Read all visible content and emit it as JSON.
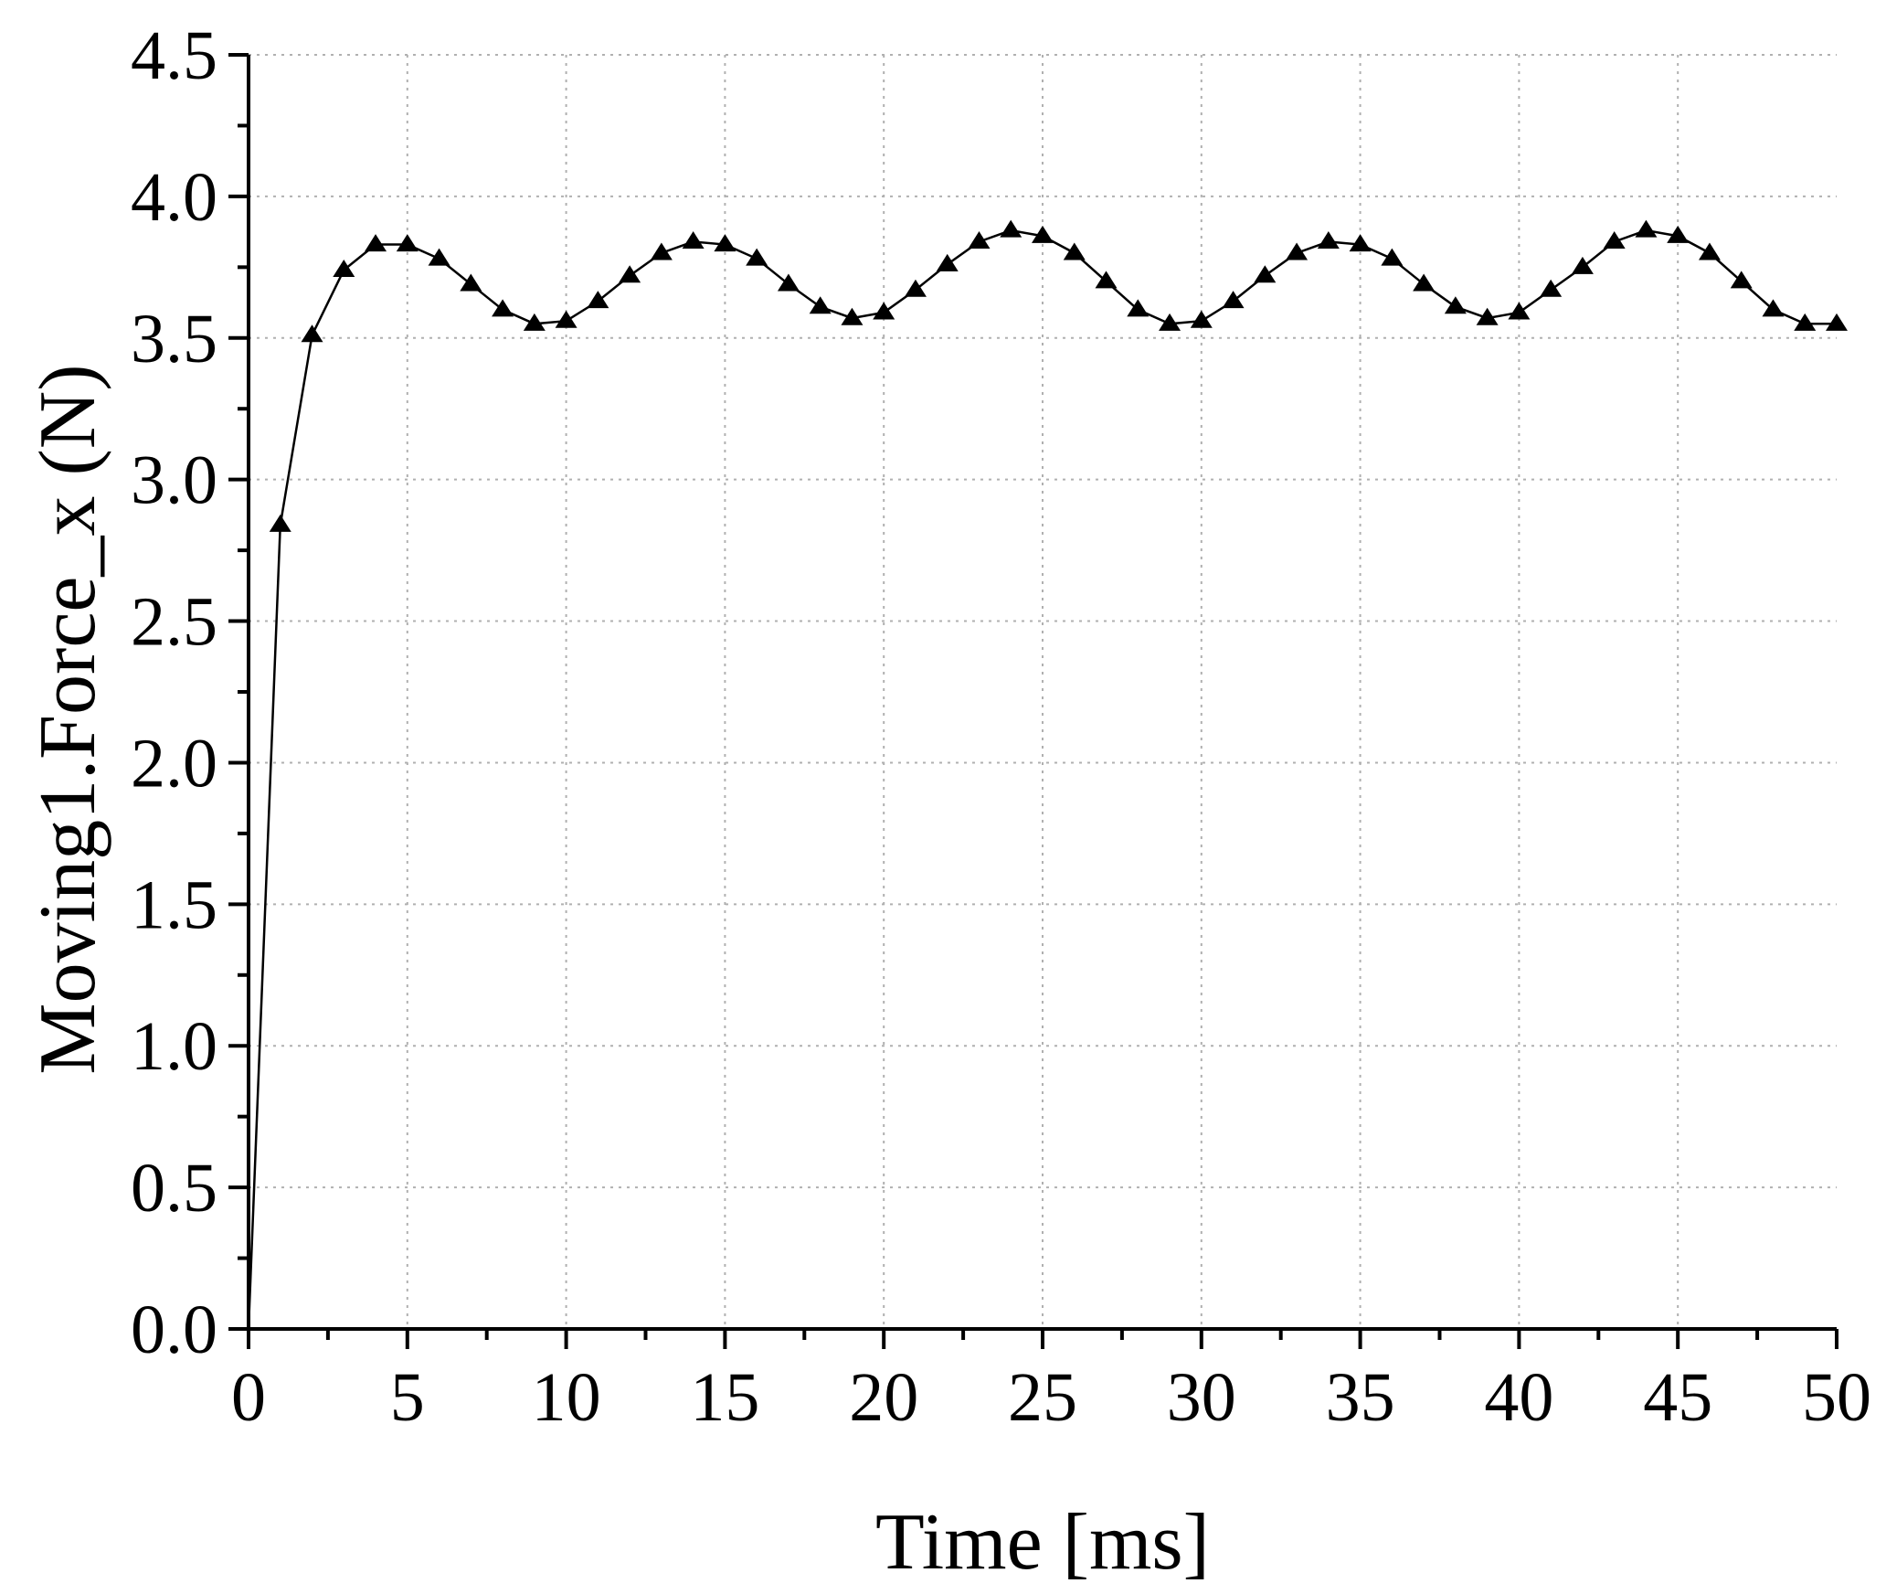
{
  "chart_data": {
    "type": "line",
    "xlabel": "Time [ms]",
    "ylabel": "Moving1.Force_x (N)",
    "xlim": [
      0,
      50
    ],
    "ylim": [
      0,
      4.5
    ],
    "xticks": [
      0,
      5,
      10,
      15,
      20,
      25,
      30,
      35,
      40,
      45,
      50
    ],
    "xtick_labels": [
      "0",
      "5",
      "10",
      "15",
      "20",
      "25",
      "30",
      "35",
      "40",
      "45",
      "50"
    ],
    "yticks": [
      0,
      0.5,
      1,
      1.5,
      2,
      2.5,
      3,
      3.5,
      4,
      4.5
    ],
    "ytick_labels": [
      "0.0",
      "0.5",
      "1.0",
      "1.5",
      "2.0",
      "2.5",
      "3.0",
      "3.5",
      "4.0",
      "4.5"
    ],
    "grid": true,
    "marker": "triangle",
    "color": "#000000",
    "series": [
      {
        "x": [
          0,
          1,
          2,
          3,
          4,
          5,
          6,
          7,
          8,
          9,
          10,
          11,
          12,
          13,
          14,
          15,
          16,
          17,
          18,
          19,
          20,
          21,
          22,
          23,
          24,
          25,
          26,
          27,
          28,
          29,
          30,
          31,
          32,
          33,
          34,
          35,
          36,
          37,
          38,
          39,
          40,
          41,
          42,
          43,
          44,
          45,
          46,
          47,
          48,
          49,
          50
        ],
        "y": [
          0.0,
          2.84,
          3.51,
          3.74,
          3.83,
          3.83,
          3.78,
          3.69,
          3.6,
          3.55,
          3.56,
          3.63,
          3.72,
          3.8,
          3.84,
          3.83,
          3.78,
          3.69,
          3.61,
          3.57,
          3.59,
          3.67,
          3.76,
          3.84,
          3.88,
          3.86,
          3.8,
          3.7,
          3.6,
          3.55,
          3.56,
          3.63,
          3.72,
          3.8,
          3.84,
          3.83,
          3.78,
          3.69,
          3.61,
          3.57,
          3.59,
          3.67,
          3.75,
          3.84,
          3.88,
          3.86,
          3.8,
          3.7,
          3.6,
          3.55,
          3.55
        ]
      }
    ]
  }
}
